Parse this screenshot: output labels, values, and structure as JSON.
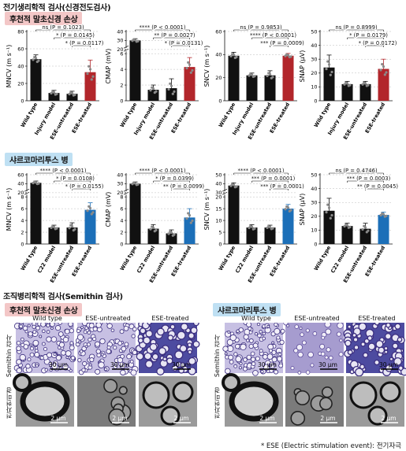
{
  "section1_title": "전기생리학적 검사(신경전도검사)",
  "row1_tag": "후천적 말초신경 손상",
  "row2_tag": "샤르코마리투스 병",
  "section2_title": "조직병리학적 검사(Semithin 검사)",
  "hist_tag_left": "후천적 말초신경 손상",
  "hist_tag_right": "샤르코마리투스 병",
  "hist_cols_left": [
    "Wild type",
    "ESE-untreated",
    "ESE-treated"
  ],
  "hist_cols_right": [
    "Wild type",
    "ESE-untreated",
    "ESE-treated"
  ],
  "hist_row_labels": [
    "Semithin 검사",
    "전자현미경"
  ],
  "scale_semithin": "30 μm",
  "scale_em": "2 μm",
  "footnote": "* ESE (Electric stimulation event): 전기자극",
  "colors": {
    "black": "#111111",
    "red": "#b2262b",
    "blue": "#1c6fb8",
    "tag_red": "#f3c7c7",
    "tag_blue": "#bfe0f3"
  },
  "chart_data": [
    {
      "type": "bar",
      "ylabel": "MNCV (m s⁻¹)",
      "categories": [
        "Wild type",
        "Injury model",
        "ESE-untreated",
        "ESE-treated"
      ],
      "values": [
        48,
        9,
        8,
        33
      ],
      "errors": [
        5,
        3,
        3,
        14
      ],
      "ylim": [
        0,
        80
      ],
      "yticks": [
        0,
        20,
        40,
        60,
        80
      ],
      "colors": [
        "black",
        "black",
        "black",
        "red"
      ],
      "annotations": [
        "ns (P = 0.1023)",
        "* (P = 0.0145)",
        "* (P = 0.0117)"
      ],
      "break": null
    },
    {
      "type": "bar",
      "ylabel": "CMAP (mV)",
      "categories": [
        "Wild type",
        "Injury model",
        "ESE-untreated",
        "ESE-treated"
      ],
      "values": [
        30,
        1.4,
        1.6,
        4.3
      ],
      "errors": [
        2,
        0.6,
        1.2,
        1.2
      ],
      "ylim": [
        0,
        8
      ],
      "yticks": [
        0,
        2,
        4,
        6,
        20,
        30,
        40
      ],
      "colors": [
        "black",
        "black",
        "black",
        "red"
      ],
      "annotations": [
        "**** (P < 0.0001)",
        "** (P = 0.0027)",
        "* (P = 0.0131)"
      ],
      "break": [
        6,
        20
      ]
    },
    {
      "type": "bar",
      "ylabel": "SNCV (m s⁻¹)",
      "categories": [
        "Wild type",
        "Injury model",
        "ESE-untreated",
        "ESE-treated"
      ],
      "values": [
        39,
        22,
        22,
        39
      ],
      "errors": [
        3,
        2,
        4,
        2
      ],
      "ylim": [
        0,
        60
      ],
      "yticks": [
        0,
        20,
        40,
        60
      ],
      "colors": [
        "black",
        "black",
        "black",
        "red"
      ],
      "annotations": [
        "ns (P = 0.9853)",
        "**** (P < 0.0001)",
        "*** (P = 0.0009)"
      ],
      "break": null
    },
    {
      "type": "bar",
      "ylabel": "SNAP (μV)",
      "categories": [
        "Wild type",
        "Injury model",
        "ESE-untreated",
        "ESE-treated"
      ],
      "values": [
        24,
        12,
        12,
        23
      ],
      "errors": [
        9,
        2,
        2,
        7
      ],
      "ylim": [
        0,
        50
      ],
      "yticks": [
        0,
        10,
        20,
        30,
        40,
        50
      ],
      "colors": [
        "black",
        "black",
        "black",
        "red"
      ],
      "annotations": [
        "ns (P = 0.8999)",
        "* (P = 0.0179)",
        "* (P = 0.0172)"
      ],
      "break": null
    },
    {
      "type": "bar",
      "ylabel": "MNCV (m s⁻¹)",
      "categories": [
        "Wild type",
        "C22 model",
        "ESE-untreated",
        "ESE-treated"
      ],
      "values": [
        42,
        2.8,
        2.8,
        5.8
      ],
      "errors": [
        4,
        0.4,
        0.8,
        1.2
      ],
      "ylim": [
        0,
        10
      ],
      "yticks": [
        0,
        2,
        4,
        6,
        8,
        20,
        40,
        60
      ],
      "colors": [
        "black",
        "black",
        "black",
        "blue"
      ],
      "annotations": [
        "**** (P < 0.0001)",
        "* (P = 0.0108)",
        "* (P = 0.0155)"
      ],
      "break": [
        8,
        20
      ]
    },
    {
      "type": "bar",
      "ylabel": "CMAP (mV)",
      "categories": [
        "Wild type",
        "C22 model",
        "ESE-untreated",
        "ESE-treated"
      ],
      "values": [
        30,
        2.6,
        1.8,
        4.5
      ],
      "errors": [
        2,
        0.7,
        0.6,
        1.5
      ],
      "ylim": [
        0,
        8
      ],
      "yticks": [
        0,
        2,
        4,
        6,
        8,
        20,
        30,
        40
      ],
      "colors": [
        "black",
        "black",
        "black",
        "blue"
      ],
      "annotations": [
        "**** (P < 0.0001)",
        "* (P = 0.0399)",
        "** (P = 0.0099)"
      ],
      "break": [
        8,
        20
      ]
    },
    {
      "type": "bar",
      "ylabel": "SNCV (m s⁻¹)",
      "categories": [
        "Wild type",
        "C22 model",
        "ESE-untreated",
        "ESE-treated"
      ],
      "values": [
        38,
        7,
        7,
        15
      ],
      "errors": [
        3,
        1.2,
        1.0,
        1.8
      ],
      "ylim": [
        0,
        20
      ],
      "yticks": [
        0,
        5,
        10,
        15,
        20,
        30,
        40,
        50
      ],
      "colors": [
        "black",
        "black",
        "black",
        "blue"
      ],
      "annotations": [
        "**** (P < 0.0001)",
        "*** (P = 0.0001)",
        "*** (P = 0.0001)"
      ],
      "break": [
        20,
        30
      ]
    },
    {
      "type": "bar",
      "ylabel": "SNAP (μV)",
      "categories": [
        "Wild type",
        "C22 model",
        "ESE-untreated",
        "ESE-treated"
      ],
      "values": [
        24,
        13,
        11,
        21
      ],
      "errors": [
        9,
        2,
        4,
        2
      ],
      "ylim": [
        0,
        50
      ],
      "yticks": [
        0,
        10,
        20,
        30,
        40,
        50
      ],
      "colors": [
        "black",
        "black",
        "black",
        "blue"
      ],
      "annotations": [
        "ns (P = 0.4746)",
        "*** (P = 0.0003)",
        "** (P = 0.0045)"
      ],
      "break": null
    }
  ]
}
